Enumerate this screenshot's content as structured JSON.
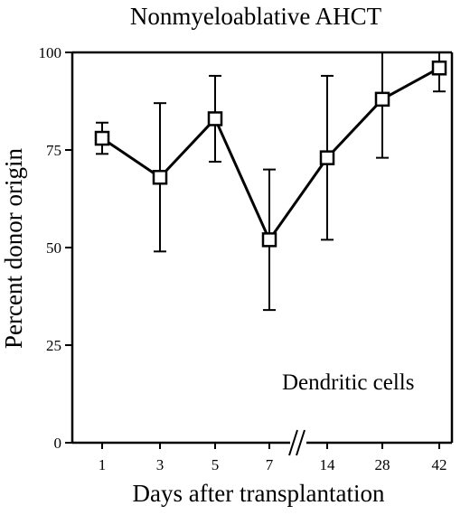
{
  "chart_data": {
    "type": "line",
    "title": "Nonmyeloablative AHCT",
    "xlabel": "Days after transplantation",
    "ylabel": "Percent donor origin",
    "annotation": "Dendritic cells",
    "categories": [
      "1",
      "3",
      "5",
      "7",
      "14",
      "28",
      "42"
    ],
    "axis_break_between": [
      "7",
      "14"
    ],
    "ylim": [
      0,
      100
    ],
    "yticks": [
      "0",
      "25",
      "50",
      "75",
      "100"
    ],
    "grid": false,
    "legend": "none",
    "marker": "open-square",
    "color": "#000000",
    "series": [
      {
        "values": [
          78,
          68,
          83,
          52,
          73,
          88,
          96
        ],
        "error_high": [
          82,
          87,
          94,
          70,
          94,
          100,
          100
        ],
        "error_low": [
          74,
          49,
          72,
          34,
          52,
          73,
          90
        ]
      }
    ]
  }
}
